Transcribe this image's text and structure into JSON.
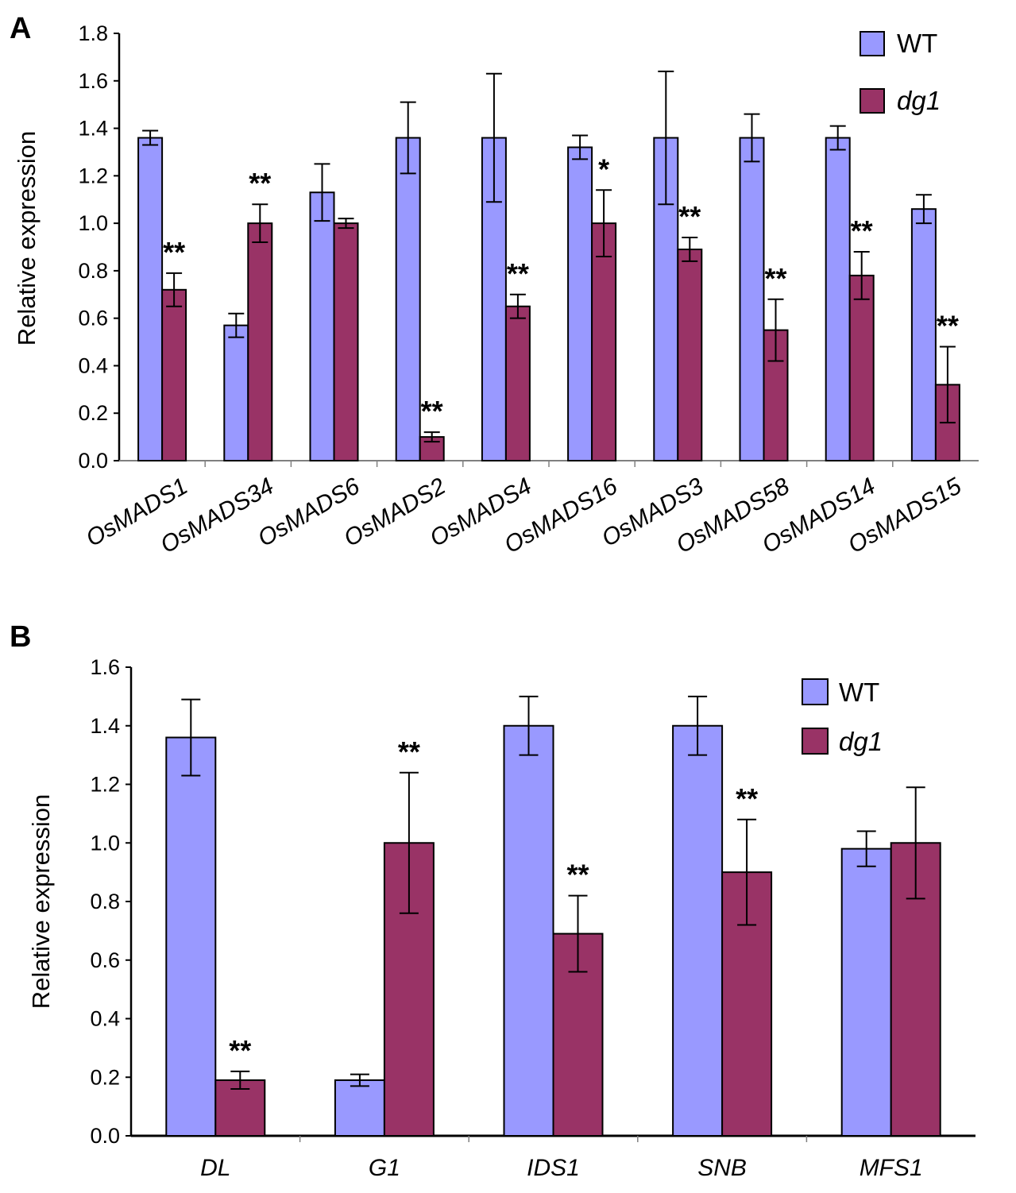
{
  "colors": {
    "wt": "#9999ff",
    "dg1": "#993366",
    "axis": "#000000",
    "gridline": "#808080"
  },
  "chart_data": [
    {
      "panel": "A",
      "type": "bar",
      "ylabel": "Relative expression",
      "ylim": [
        0,
        1.8
      ],
      "yticks": [
        "0.0",
        "0.2",
        "0.4",
        "0.6",
        "0.8",
        "1.0",
        "1.2",
        "1.4",
        "1.6",
        "1.8"
      ],
      "legend_position": "top-right",
      "categories": [
        "OsMADS1",
        "OsMADS34",
        "OsMADS6",
        "OsMADS2",
        "OsMADS4",
        "OsMADS16",
        "OsMADS3",
        "OsMADS58",
        "OsMADS14",
        "OsMADS15"
      ],
      "series": [
        {
          "name": "WT",
          "values": [
            1.36,
            0.57,
            1.13,
            1.36,
            1.36,
            1.32,
            1.36,
            1.36,
            1.36,
            1.06
          ],
          "errors": [
            0.03,
            0.05,
            0.12,
            0.15,
            0.27,
            0.05,
            0.28,
            0.1,
            0.05,
            0.06
          ]
        },
        {
          "name": "dg1",
          "values": [
            0.72,
            1.0,
            1.0,
            0.1,
            0.65,
            1.0,
            0.89,
            0.55,
            0.78,
            0.32
          ],
          "errors": [
            0.07,
            0.08,
            0.02,
            0.02,
            0.05,
            0.14,
            0.05,
            0.13,
            0.1,
            0.16
          ]
        }
      ],
      "significance": [
        "**",
        "**",
        "",
        "**",
        "**",
        "*",
        "**",
        "**",
        "**",
        "**"
      ]
    },
    {
      "panel": "B",
      "type": "bar",
      "ylabel": "Relative expression",
      "ylim": [
        0,
        1.6
      ],
      "yticks": [
        "0.0",
        "0.2",
        "0.4",
        "0.6",
        "0.8",
        "1.0",
        "1.2",
        "1.4",
        "1.6"
      ],
      "legend_position": "top-right",
      "categories": [
        "DL",
        "G1",
        "IDS1",
        "SNB",
        "MFS1"
      ],
      "series": [
        {
          "name": "WT",
          "values": [
            1.36,
            0.19,
            1.4,
            1.4,
            0.98
          ],
          "errors": [
            0.13,
            0.02,
            0.1,
            0.1,
            0.06
          ]
        },
        {
          "name": "dg1",
          "values": [
            0.19,
            1.0,
            0.69,
            0.9,
            1.0
          ],
          "errors": [
            0.03,
            0.24,
            0.13,
            0.18,
            0.19
          ]
        }
      ],
      "significance": [
        "**",
        "**",
        "**",
        "**",
        ""
      ]
    }
  ]
}
